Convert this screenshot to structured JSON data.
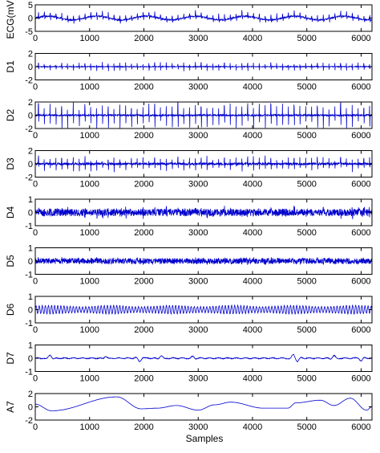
{
  "chart_data": {
    "type": "line",
    "xlabel": "Samples",
    "xlim": [
      0,
      6200
    ],
    "x_ticks": [
      0,
      1000,
      2000,
      3000,
      4000,
      5000,
      6000
    ],
    "line_color": "#0000cc",
    "grid": false,
    "panels": [
      {
        "ylabel": "ECG(mV)",
        "ylim": [
          -5,
          5
        ],
        "y_ticks": [
          -5,
          0,
          5
        ],
        "signal": {
          "kind": "ecg",
          "baseline_amp": 0.7,
          "baseline_freq": 0.0011,
          "spike_amp": 2.0,
          "noise": 0.5,
          "seed": 11
        }
      },
      {
        "ylabel": "D1",
        "ylim": [
          -2,
          2
        ],
        "y_ticks": [
          -2,
          0,
          2
        ],
        "signal": {
          "kind": "spikes",
          "spike_amp": 0.5,
          "noise": 0.12,
          "seed": 21
        }
      },
      {
        "ylabel": "D2",
        "ylim": [
          -2,
          2
        ],
        "y_ticks": [
          -2,
          0,
          2
        ],
        "signal": {
          "kind": "spikes",
          "spike_amp": 1.4,
          "noise": 0.25,
          "seed": 31
        }
      },
      {
        "ylabel": "D3",
        "ylim": [
          -2,
          2
        ],
        "y_ticks": [
          -2,
          0,
          2
        ],
        "signal": {
          "kind": "spikes",
          "spike_amp": 0.8,
          "noise": 0.35,
          "seed": 41
        }
      },
      {
        "ylabel": "D4",
        "ylim": [
          -1,
          1
        ],
        "y_ticks": [
          -1,
          0,
          1
        ],
        "signal": {
          "kind": "noise",
          "amp": 0.28,
          "spike_amp": 0.25,
          "seed": 51
        }
      },
      {
        "ylabel": "D5",
        "ylim": [
          -1,
          1
        ],
        "y_ticks": [
          -1,
          0,
          1
        ],
        "signal": {
          "kind": "noise",
          "amp": 0.22,
          "spike_amp": 0.1,
          "seed": 61
        }
      },
      {
        "ylabel": "D6",
        "ylim": [
          -1,
          1
        ],
        "y_ticks": [
          -1,
          0,
          1
        ],
        "signal": {
          "kind": "oscillation",
          "amp": 0.32,
          "freq": 0.0175,
          "noise": 0.04,
          "seed": 71
        }
      },
      {
        "ylabel": "D7",
        "ylim": [
          -1,
          1
        ],
        "y_ticks": [
          -1,
          0,
          1
        ],
        "signal": {
          "kind": "bumps",
          "amp": 0.08,
          "freq": 0.006,
          "bumps": [
            [
              270,
              0.25
            ],
            [
              1300,
              0.15
            ],
            [
              1920,
              -0.25
            ],
            [
              2320,
              0.2
            ],
            [
              2900,
              0.12
            ],
            [
              4750,
              0.25
            ],
            [
              4830,
              -0.2
            ],
            [
              5500,
              0.2
            ],
            [
              6000,
              -0.2
            ]
          ],
          "seed": 81
        }
      },
      {
        "ylabel": "A7",
        "ylim": [
          -2,
          2
        ],
        "y_ticks": [
          -2,
          0,
          2
        ],
        "signal": {
          "kind": "lowfreq",
          "peaks": [
            [
              0,
              0.4
            ],
            [
              300,
              -0.6
            ],
            [
              1500,
              1.5
            ],
            [
              1950,
              -0.3
            ],
            [
              2250,
              -0.2
            ],
            [
              2600,
              0.2
            ],
            [
              3000,
              -0.5
            ],
            [
              3300,
              0.3
            ],
            [
              3600,
              0.7
            ],
            [
              4200,
              -0.2
            ],
            [
              4650,
              -0.2
            ],
            [
              4800,
              0.6
            ],
            [
              5250,
              1.0
            ],
            [
              5500,
              0.2
            ],
            [
              5800,
              1.3
            ],
            [
              6100,
              -0.5
            ],
            [
              6200,
              0.0
            ]
          ]
        }
      }
    ]
  }
}
